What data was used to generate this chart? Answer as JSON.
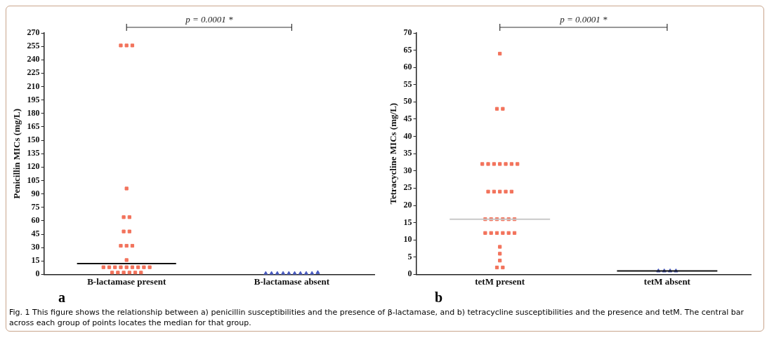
{
  "chart_data": [
    {
      "type": "scatter",
      "ylabel": "Penicillin MICs (mg/L)",
      "categories": [
        "B-lactamase present",
        "B-lactamase absent"
      ],
      "ylim": [
        0,
        270
      ],
      "yticks": [
        0,
        15,
        30,
        45,
        60,
        75,
        90,
        105,
        120,
        135,
        150,
        165,
        180,
        195,
        210,
        225,
        240,
        255,
        270
      ],
      "legend": false,
      "annotations": [
        "p = 0.0001 *",
        "a"
      ],
      "series": [
        {
          "x": [
            "B-lactamase present",
            "B-lactamase present",
            "B-lactamase present",
            "B-lactamase present",
            "B-lactamase present",
            "B-lactamase present",
            "B-lactamase present",
            "B-lactamase present",
            "B-lactamase present",
            "B-lactamase present",
            "B-lactamase present",
            "B-lactamase present",
            "B-lactamase present",
            "B-lactamase present",
            "B-lactamase present",
            "B-lactamase present",
            "B-lactamase present",
            "B-lactamase present",
            "B-lactamase present",
            "B-lactamase present",
            "B-lactamase present",
            "B-lactamase present",
            "B-lactamase present",
            "B-lactamase present",
            "B-lactamase present",
            "B-lactamase present",
            "B-lactamase present"
          ],
          "values": [
            256,
            256,
            256,
            96,
            64,
            64,
            48,
            48,
            32,
            32,
            32,
            16,
            8,
            8,
            8,
            8,
            8,
            8,
            8,
            8,
            8,
            2,
            2,
            2,
            2,
            2,
            2
          ],
          "color": "#f2735c",
          "marker": "square"
        },
        {
          "x": [
            "B-lactamase absent",
            "B-lactamase absent",
            "B-lactamase absent",
            "B-lactamase absent",
            "B-lactamase absent",
            "B-lactamase absent",
            "B-lactamase absent",
            "B-lactamase absent",
            "B-lactamase absent",
            "B-lactamase absent"
          ],
          "values": [
            1,
            1,
            1,
            1,
            1,
            1,
            1,
            1,
            1,
            2
          ],
          "color": "#4a5cc0",
          "marker": "triangle"
        }
      ],
      "ref_lines": [
        {
          "axis": "y",
          "value": 12,
          "color": "#111111"
        }
      ]
    },
    {
      "type": "scatter",
      "ylabel": "Tetracycline MICs (mg/L)",
      "categories": [
        "tetM present",
        "tetM absent"
      ],
      "ylim": [
        0,
        70
      ],
      "yticks": [
        0,
        5,
        10,
        15,
        20,
        25,
        30,
        35,
        40,
        45,
        50,
        55,
        60,
        65,
        70
      ],
      "legend": false,
      "annotations": [
        "p = 0.0001 *",
        "b",
        "Fig. 1 This figure shows the relationship between a) penicillin susceptibilities and the presence of β-lactamase, and b) tetracycline susceptibilities and the presence and tetM. The central bar across each group of points locates the median for that group."
      ],
      "series": [
        {
          "x": [
            "tetM present",
            "tetM present",
            "tetM present",
            "tetM present",
            "tetM present",
            "tetM present",
            "tetM present",
            "tetM present",
            "tetM present",
            "tetM present",
            "tetM present",
            "tetM present",
            "tetM present",
            "tetM present",
            "tetM present",
            "tetM present",
            "tetM present",
            "tetM present",
            "tetM present",
            "tetM present",
            "tetM present",
            "tetM present",
            "tetM present",
            "tetM present",
            "tetM present",
            "tetM present",
            "tetM present",
            "tetM present",
            "tetM present",
            "tetM present",
            "tetM present",
            "tetM present"
          ],
          "values": [
            64,
            48,
            48,
            32,
            32,
            32,
            32,
            32,
            32,
            32,
            24,
            24,
            24,
            24,
            24,
            16,
            16,
            16,
            16,
            16,
            16,
            12,
            12,
            12,
            12,
            12,
            12,
            8,
            6,
            4,
            2,
            2
          ],
          "color": "#f2735c",
          "marker": "square"
        },
        {
          "x": [
            "tetM absent",
            "tetM absent",
            "tetM absent",
            "tetM absent"
          ],
          "values": [
            1,
            1,
            1,
            1
          ],
          "color": "#4a5cc0",
          "marker": "triangle"
        }
      ],
      "ref_lines": [
        {
          "axis": "y",
          "value": 16,
          "color": "#c8c8c8"
        },
        {
          "axis": "y",
          "value": 1,
          "color": "#111111"
        }
      ]
    }
  ]
}
